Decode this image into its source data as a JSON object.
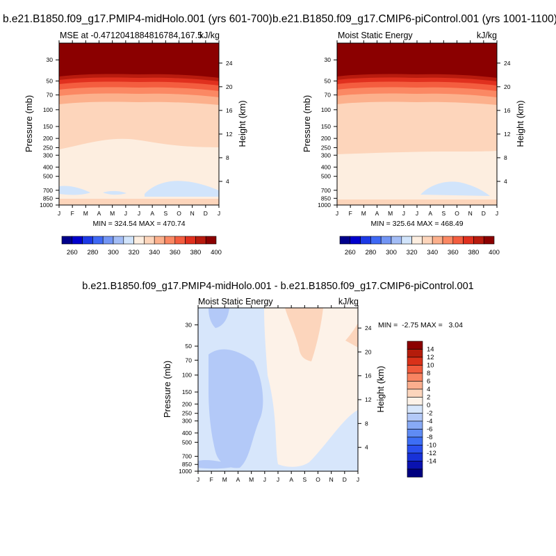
{
  "colors": {
    "mse_levels": [
      "#00008b",
      "#0000cd",
      "#1c39e6",
      "#3f69f5",
      "#7295f4",
      "#a3bdf6",
      "#d1e4fb",
      "#fdeee0",
      "#fdd5bb",
      "#fcb08c",
      "#fb8863",
      "#f45d3f",
      "#e0301e",
      "#b81b0e",
      "#8b0000"
    ],
    "diff_levels": [
      "#000080",
      "#0a12b0",
      "#1832d8",
      "#2a4fee",
      "#3d6ef5",
      "#5f8bf4",
      "#88aaf5",
      "#b3c9f8",
      "#d7e6fb",
      "#fdf2e8",
      "#fcd5bc",
      "#fbae8e",
      "#f88462",
      "#f05a3c",
      "#d93119",
      "#b41c0b",
      "#8b0000"
    ]
  },
  "panels": {
    "left": {
      "case": "b.e21.B1850.f09_g17.PMIP4-midHolo.001 (yrs 601-700)",
      "subtitle_left": "MSE at -0.4712041884816784,167.5",
      "subtitle_right": "kJ/kg",
      "ylabel": "Pressure (mb)",
      "ylabel_right": "Height (km)",
      "minmax": "MIN = 324.54 MAX = 470.74"
    },
    "right": {
      "case": "b.e21.B1850.f09_g17.CMIP6-piControl.001 (yrs 1001-1100)",
      "subtitle_left": "Moist Static Energy",
      "subtitle_right": "kJ/kg",
      "ylabel": "Pressure (mb)",
      "ylabel_right": "Height (km)",
      "minmax": "MIN = 325.64 MAX = 468.49"
    },
    "diff": {
      "case": "b.e21.B1850.f09_g17.PMIP4-midHolo.001 - b.e21.B1850.f09_g17.CMIP6-piControl.001",
      "subtitle_left": "Moist Static Energy",
      "subtitle_right": "kJ/kg",
      "ylabel": "Pressure (mb)",
      "ylabel_right": "Height (km)",
      "minmax": "MIN =  -2.75 MAX =   3.04"
    }
  },
  "chart_data": [
    {
      "type": "heatmap",
      "title": "b.e21.B1850.f09_g17.PMIP4-midHolo.001 (yrs 601-700)",
      "subtitle": "MSE at -0.4712041884816784,167.5",
      "units": "kJ/kg",
      "x_ticks": [
        "J",
        "F",
        "M",
        "A",
        "M",
        "J",
        "J",
        "A",
        "S",
        "O",
        "N",
        "D",
        "J"
      ],
      "y_ticks_pressure": [
        30,
        50,
        70,
        100,
        150,
        200,
        250,
        300,
        400,
        500,
        700,
        850,
        1000
      ],
      "y_ticks_height": [
        4,
        8,
        12,
        16,
        20,
        24
      ],
      "y_scale": "log",
      "colorbar_labels": [
        260,
        280,
        300,
        320,
        340,
        360,
        380,
        400
      ],
      "min": 324.54,
      "max": 470.74
    },
    {
      "type": "heatmap",
      "title": "b.e21.B1850.f09_g17.CMIP6-piControl.001 (yrs 1001-1100)",
      "subtitle": "Moist Static Energy",
      "units": "kJ/kg",
      "x_ticks": [
        "J",
        "F",
        "M",
        "A",
        "M",
        "J",
        "J",
        "A",
        "S",
        "O",
        "N",
        "D",
        "J"
      ],
      "y_ticks_pressure": [
        30,
        50,
        70,
        100,
        150,
        200,
        250,
        300,
        400,
        500,
        700,
        850,
        1000
      ],
      "y_ticks_height": [
        4,
        8,
        12,
        16,
        20,
        24
      ],
      "y_scale": "log",
      "colorbar_labels": [
        260,
        280,
        300,
        320,
        340,
        360,
        380,
        400
      ],
      "min": 325.64,
      "max": 468.49
    },
    {
      "type": "heatmap",
      "title": "b.e21.B1850.f09_g17.PMIP4-midHolo.001 - b.e21.B1850.f09_g17.CMIP6-piControl.001",
      "subtitle": "Moist Static Energy",
      "units": "kJ/kg",
      "x_ticks": [
        "J",
        "F",
        "M",
        "A",
        "M",
        "J",
        "J",
        "A",
        "S",
        "O",
        "N",
        "D",
        "J"
      ],
      "y_ticks_pressure": [
        30,
        50,
        70,
        100,
        150,
        200,
        250,
        300,
        400,
        500,
        700,
        850,
        1000
      ],
      "y_ticks_height": [
        4,
        8,
        12,
        16,
        20,
        24
      ],
      "y_scale": "log",
      "colorbar_labels": [
        14,
        12,
        10,
        8,
        6,
        4,
        2,
        0,
        -2,
        -4,
        -6,
        -8,
        -10,
        -12,
        -14
      ],
      "min": -2.75,
      "max": 3.04
    }
  ]
}
